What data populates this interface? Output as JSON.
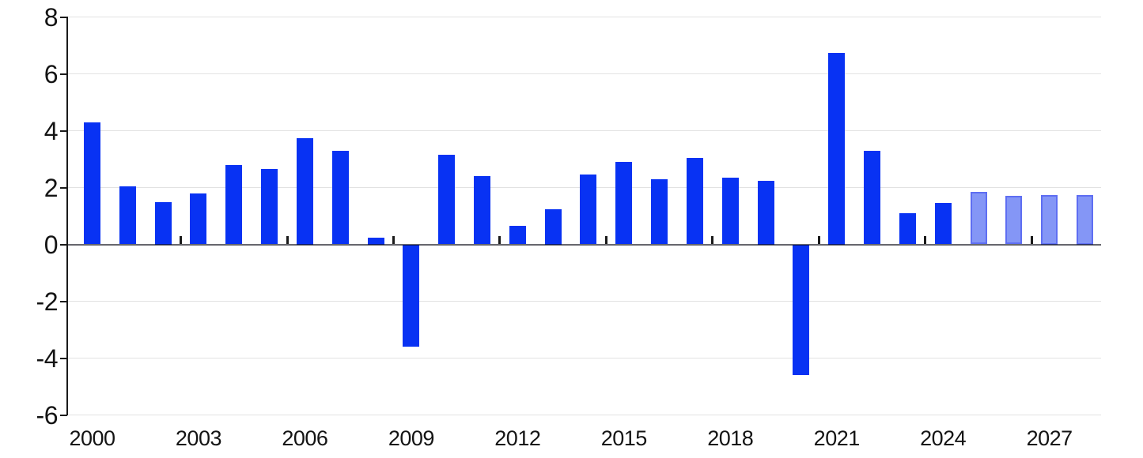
{
  "chart_data": {
    "type": "bar",
    "title": "",
    "subtitle": "",
    "xlabel": "",
    "ylabel": "",
    "legend": "none",
    "grid": "horizontal-light",
    "ylim": [
      -6,
      8
    ],
    "y_ticks": [
      8,
      6,
      4,
      2,
      0,
      -2,
      -4,
      -6
    ],
    "x_tick_labels": [
      "2000",
      "2003",
      "2006",
      "2009",
      "2012",
      "2015",
      "2018",
      "2021",
      "2024",
      "2027"
    ],
    "x": [
      2000,
      2001,
      2002,
      2003,
      2004,
      2005,
      2006,
      2007,
      2008,
      2009,
      2010,
      2011,
      2012,
      2013,
      2014,
      2015,
      2016,
      2017,
      2018,
      2019,
      2020,
      2021,
      2022,
      2023,
      2024,
      2025,
      2026,
      2027,
      2028
    ],
    "values": [
      4.3,
      2.05,
      1.5,
      1.8,
      2.8,
      2.65,
      3.75,
      3.3,
      0.25,
      -3.6,
      3.15,
      2.4,
      0.65,
      1.25,
      2.45,
      2.9,
      2.3,
      3.05,
      2.35,
      2.25,
      -4.6,
      6.75,
      3.3,
      1.1,
      1.45,
      1.85,
      1.7,
      1.75,
      1.75
    ],
    "forecast_years": [
      2025,
      2026,
      2027,
      2028
    ],
    "colors": {
      "bar": "#0832f3",
      "forecast_fill": "#8496f6",
      "forecast_border": "#5e6ef2",
      "gridline": "#e2e2e2",
      "zero_line": "rgba(10,10,20,0.62)",
      "axis": "#1a1a1a",
      "label_text": "#141414",
      "background": "#ffffff"
    }
  }
}
